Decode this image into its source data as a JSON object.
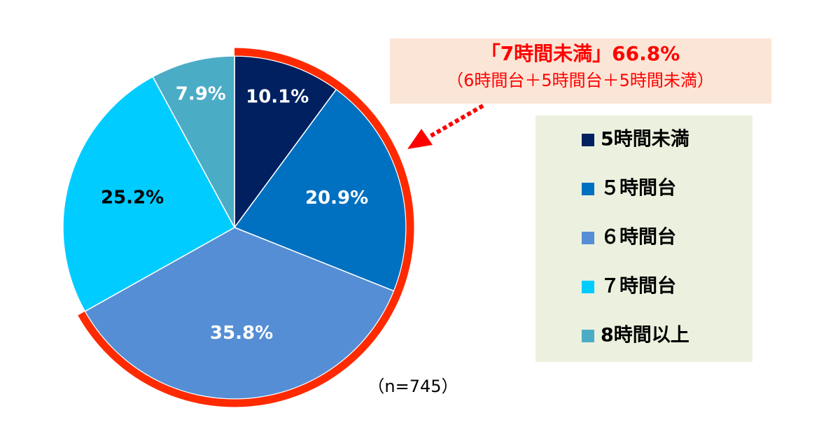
{
  "chart_data": {
    "type": "pie",
    "annotation_title": "「7時間未満」66.8%",
    "annotation_subtitle": "（6時間台＋5時間台＋5時間未満）",
    "note": "（n=745）",
    "categories": [
      "5時間未満",
      "５時間台",
      "６時間台",
      "７時間台",
      "8時間以上"
    ],
    "values": [
      10.1,
      20.9,
      35.8,
      25.2,
      7.9
    ],
    "value_labels": [
      "10.1%",
      "20.9%",
      "35.8%",
      "25.2%",
      "7.9%"
    ],
    "colors": [
      "#002060",
      "#0070c0",
      "#558ed5",
      "#00ccff",
      "#4bacc6"
    ],
    "highlight_color": "#ff2a00"
  }
}
